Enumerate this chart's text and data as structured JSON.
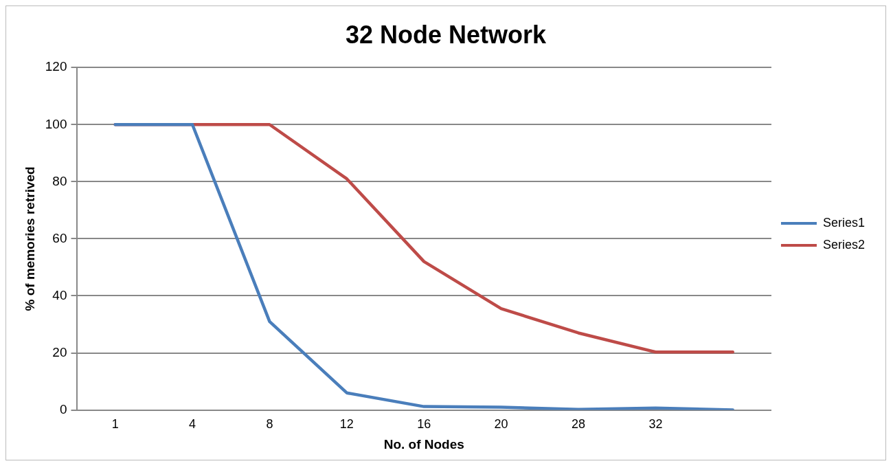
{
  "chart_data": {
    "type": "line",
    "title": "32 Node Network",
    "xlabel": "No. of Nodes",
    "ylabel": "% of memories retrived",
    "categories": [
      "1",
      "4",
      "8",
      "12",
      "16",
      "20",
      "28",
      "32",
      null
    ],
    "series": [
      {
        "name": "Series1",
        "color": "#4a7ebb",
        "values": [
          100,
          100,
          31,
          6,
          1.2,
          1,
          0.2,
          0.7,
          0
        ]
      },
      {
        "name": "Series2",
        "color": "#be4b48",
        "values": [
          100,
          100,
          100,
          81,
          52,
          35.5,
          27,
          20.3,
          20.3
        ]
      }
    ],
    "ylim": [
      0,
      120
    ],
    "yticks": [
      0,
      20,
      40,
      60,
      80,
      100,
      120
    ],
    "grid": "y",
    "legend": "right",
    "marker": "none",
    "line_style": "solid"
  }
}
